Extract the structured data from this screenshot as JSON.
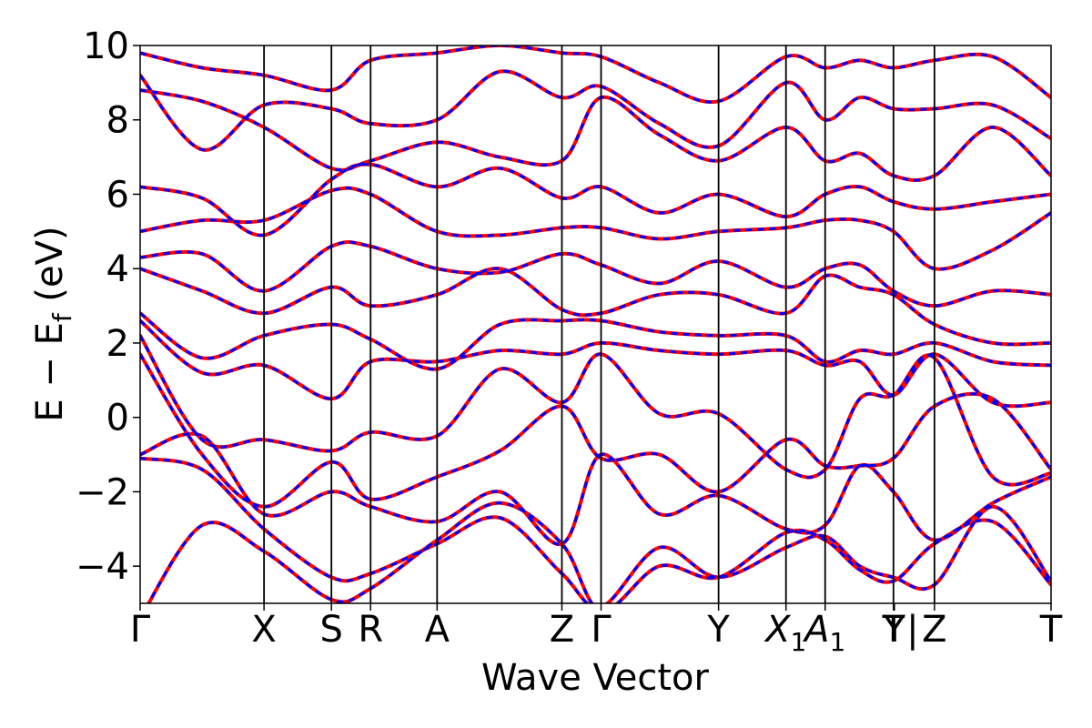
{
  "chart_data": {
    "type": "line",
    "title": "",
    "xlabel": "Wave Vector",
    "ylabel_main": "E − E",
    "ylabel_sub": "f",
    "ylabel_tail": " (eV)",
    "ylim": [
      -5,
      10
    ],
    "yticks": [
      -4,
      -2,
      0,
      2,
      4,
      6,
      8,
      10
    ],
    "ytick_labels": [
      "−4",
      "−2",
      "0",
      "2",
      "4",
      "6",
      "8",
      "10"
    ],
    "kpath": [
      {
        "label": "Γ",
        "sub": "",
        "x": 0.0,
        "italic": false
      },
      {
        "label": "X",
        "sub": "",
        "x": 0.136,
        "italic": false
      },
      {
        "label": "S",
        "sub": "",
        "x": 0.21,
        "italic": false
      },
      {
        "label": "R",
        "sub": "",
        "x": 0.253,
        "italic": false
      },
      {
        "label": "A",
        "sub": "",
        "x": 0.326,
        "italic": false
      },
      {
        "label": "Z",
        "sub": "",
        "x": 0.463,
        "italic": false
      },
      {
        "label": "Γ",
        "sub": "",
        "x": 0.506,
        "italic": false
      },
      {
        "label": "Y",
        "sub": "",
        "x": 0.635,
        "italic": false
      },
      {
        "label": "X",
        "sub": "1",
        "x": 0.709,
        "italic": true
      },
      {
        "label": "A",
        "sub": "1",
        "x": 0.752,
        "italic": true
      },
      {
        "label": "T",
        "sub": "",
        "x": 0.827,
        "italic": false
      },
      {
        "label": "Y",
        "sub": "",
        "x": 0.828,
        "italic": false
      },
      {
        "label": "|",
        "sub": "",
        "x": 0.848,
        "italic": false
      },
      {
        "label": "Z",
        "sub": "",
        "x": 0.872,
        "italic": false
      },
      {
        "label": "T",
        "sub": "",
        "x": 1.0,
        "italic": false
      }
    ],
    "vlines": [
      0.136,
      0.21,
      0.253,
      0.326,
      0.463,
      0.506,
      0.635,
      0.709,
      0.752,
      0.827,
      0.872
    ],
    "series": [
      {
        "style": "solid",
        "color": "#ff0000",
        "values_ref": "bands"
      },
      {
        "style": "dashed",
        "color": "#0000ff",
        "values_ref": "bands"
      }
    ],
    "bands_x": [
      0.0,
      0.068,
      0.136,
      0.21,
      0.253,
      0.326,
      0.395,
      0.463,
      0.506,
      0.57,
      0.635,
      0.709,
      0.752,
      0.79,
      0.827,
      0.872,
      0.936,
      1.0
    ],
    "bands": [
      [
        -5.4,
        -2.9,
        -3.6,
        -4.9,
        -4.6,
        -3.3,
        -2.3,
        -3.4,
        -5.2,
        -4.0,
        -4.3,
        -3.1,
        -3.3,
        -4.1,
        -4.4,
        -3.4,
        -2.8,
        -4.5
      ],
      [
        -1.1,
        -1.4,
        -3.0,
        -4.3,
        -4.2,
        -3.4,
        -2.7,
        -4.2,
        -5.1,
        -3.5,
        -4.3,
        -3.5,
        -3.2,
        -4.0,
        -4.3,
        -4.5,
        -2.4,
        -4.4
      ],
      [
        -1.0,
        -0.5,
        -2.6,
        -2.0,
        -2.4,
        -2.8,
        -2.0,
        -3.4,
        -1.0,
        -2.6,
        -2.1,
        -3.0,
        -2.9,
        -1.3,
        -2.0,
        -3.3,
        -2.3,
        -1.6
      ],
      [
        1.7,
        -1.0,
        -2.4,
        -1.2,
        -2.2,
        -1.6,
        -0.9,
        0.3,
        -1.1,
        -1.0,
        -2.0,
        -0.6,
        -1.3,
        -1.3,
        -1.1,
        0.3,
        0.5,
        -1.4
      ],
      [
        2.2,
        -0.6,
        -0.6,
        -0.9,
        -0.4,
        -0.5,
        1.3,
        0.4,
        1.7,
        0.1,
        0.1,
        -1.4,
        -1.4,
        0.5,
        0.6,
        1.6,
        -1.6,
        -1.5
      ],
      [
        2.6,
        1.2,
        1.4,
        0.5,
        1.5,
        1.5,
        1.8,
        1.7,
        2.0,
        1.8,
        1.7,
        1.8,
        1.4,
        1.5,
        0.6,
        1.7,
        0.4,
        0.4
      ],
      [
        2.8,
        1.6,
        2.2,
        2.5,
        2.1,
        1.3,
        2.5,
        2.6,
        2.6,
        2.3,
        2.2,
        2.2,
        1.5,
        1.8,
        1.7,
        2.0,
        1.5,
        1.4
      ],
      [
        4.0,
        3.4,
        2.8,
        3.5,
        3.0,
        3.3,
        4.0,
        2.9,
        2.8,
        3.3,
        3.3,
        2.8,
        3.8,
        3.5,
        3.3,
        2.5,
        2.0,
        2.0
      ],
      [
        4.3,
        4.4,
        3.4,
        4.6,
        4.6,
        4.0,
        3.9,
        4.4,
        4.1,
        3.6,
        4.2,
        3.5,
        4.0,
        4.1,
        3.4,
        3.0,
        3.4,
        3.3
      ],
      [
        5.0,
        5.3,
        5.3,
        6.1,
        6.0,
        5.0,
        4.9,
        5.1,
        5.1,
        4.8,
        5.0,
        5.1,
        5.3,
        5.3,
        5.0,
        4.0,
        4.5,
        5.5
      ],
      [
        6.2,
        5.9,
        4.9,
        6.4,
        6.8,
        6.2,
        6.7,
        5.9,
        6.2,
        5.5,
        6.0,
        5.4,
        6.0,
        6.2,
        5.8,
        5.6,
        5.8,
        6.0
      ],
      [
        8.8,
        8.5,
        7.8,
        6.7,
        6.9,
        7.4,
        7.0,
        6.9,
        8.6,
        7.6,
        6.9,
        7.8,
        6.9,
        7.1,
        6.5,
        6.5,
        7.8,
        6.5
      ],
      [
        9.2,
        7.2,
        8.4,
        8.3,
        7.9,
        8.0,
        9.3,
        8.6,
        8.9,
        7.9,
        7.3,
        9.0,
        8.0,
        8.6,
        8.3,
        8.3,
        8.4,
        7.5
      ],
      [
        9.8,
        9.4,
        9.2,
        8.8,
        9.6,
        9.8,
        10.0,
        9.8,
        9.7,
        9.0,
        8.5,
        9.7,
        9.4,
        9.6,
        9.4,
        9.6,
        9.7,
        8.6
      ]
    ],
    "grid": false,
    "legend": "none"
  }
}
